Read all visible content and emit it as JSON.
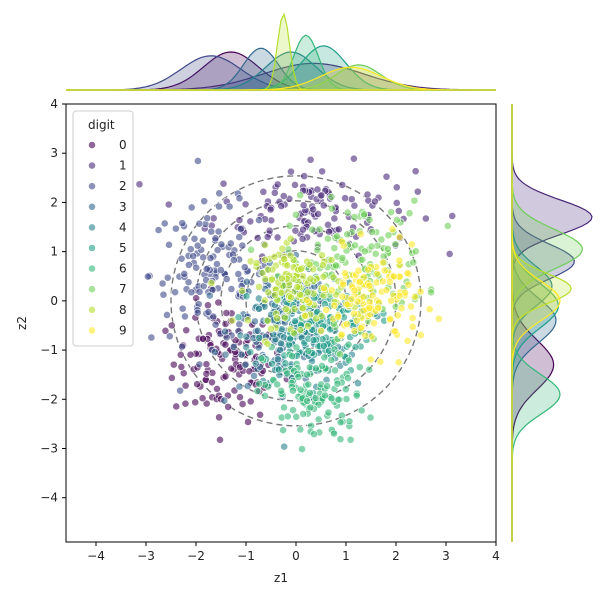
{
  "chart_data": {
    "type": "scatter",
    "title": "",
    "xlabel": "z1",
    "ylabel": "z2",
    "xlim": [
      -4.6,
      4.0
    ],
    "ylim": [
      -4.9,
      4.0
    ],
    "xticks": [
      -4,
      -3,
      -2,
      -1,
      0,
      1,
      2,
      3,
      4
    ],
    "yticks": [
      -4,
      -3,
      -2,
      -1,
      0,
      1,
      2,
      3,
      4
    ],
    "grid": false,
    "legend": {
      "title": "digit",
      "placement": "top-left",
      "entries": [
        "0",
        "1",
        "2",
        "3",
        "4",
        "5",
        "6",
        "7",
        "8",
        "9"
      ]
    },
    "marginals": {
      "top": "kde",
      "right": "kde"
    },
    "overlay": "dashed concentric circles around origin",
    "series": [
      {
        "name": "0",
        "color": "#440154",
        "center": [
          -1.35,
          -1.25
        ],
        "std": [
          0.55,
          0.6
        ]
      },
      {
        "name": "1",
        "color": "#482878",
        "center": [
          0.35,
          1.85
        ],
        "std": [
          1.0,
          0.45
        ]
      },
      {
        "name": "2",
        "color": "#3e4989",
        "center": [
          -1.7,
          0.55
        ],
        "std": [
          0.6,
          0.7
        ]
      },
      {
        "name": "3",
        "color": "#31688e",
        "center": [
          -0.3,
          -0.5
        ],
        "std": [
          0.5,
          0.6
        ]
      },
      {
        "name": "4",
        "color": "#26828e",
        "center": [
          0.05,
          -0.75
        ],
        "std": [
          0.5,
          0.55
        ]
      },
      {
        "name": "5",
        "color": "#1f9e89",
        "center": [
          0.45,
          -0.45
        ],
        "std": [
          0.55,
          0.5
        ]
      },
      {
        "name": "6",
        "color": "#35b779",
        "center": [
          0.35,
          -1.9
        ],
        "std": [
          0.5,
          0.5
        ]
      },
      {
        "name": "7",
        "color": "#6ece58",
        "center": [
          1.2,
          0.8
        ],
        "std": [
          0.7,
          0.6
        ]
      },
      {
        "name": "8",
        "color": "#b5de2b",
        "center": [
          0.0,
          0.3
        ],
        "std": [
          0.45,
          0.4
        ]
      },
      {
        "name": "9",
        "color": "#fde725",
        "center": [
          1.5,
          0.0
        ],
        "std": [
          0.5,
          0.5
        ]
      }
    ],
    "marginal_x_peaks": [
      {
        "name": "0",
        "center": -1.3,
        "std": 0.55,
        "height": 0.5
      },
      {
        "name": "1",
        "center": 0.35,
        "std": 1.0,
        "height": 0.35
      },
      {
        "name": "2",
        "center": -1.7,
        "std": 0.6,
        "height": 0.45
      },
      {
        "name": "3",
        "center": -0.7,
        "std": 0.35,
        "height": 0.55
      },
      {
        "name": "4",
        "center": -0.1,
        "std": 0.5,
        "height": 0.5
      },
      {
        "name": "5",
        "center": 0.55,
        "std": 0.45,
        "height": 0.58
      },
      {
        "name": "6",
        "center": 0.2,
        "std": 0.25,
        "height": 0.72
      },
      {
        "name": "7",
        "center": 1.25,
        "std": 0.45,
        "height": 0.33
      },
      {
        "name": "8",
        "center": -0.25,
        "std": 0.12,
        "height": 1.0
      },
      {
        "name": "9",
        "center": 1.1,
        "std": 0.6,
        "height": 0.3
      }
    ],
    "marginal_y_peaks": [
      {
        "name": "0",
        "center": -1.3,
        "std": 0.5,
        "height": 0.52
      },
      {
        "name": "1",
        "center": 1.7,
        "std": 0.35,
        "height": 1.0
      },
      {
        "name": "2",
        "center": 0.8,
        "std": 0.35,
        "height": 0.78
      },
      {
        "name": "3",
        "center": -0.4,
        "std": 0.45,
        "height": 0.55
      },
      {
        "name": "4",
        "center": 0.3,
        "std": 0.4,
        "height": 0.5
      },
      {
        "name": "5",
        "center": -0.1,
        "std": 0.45,
        "height": 0.58
      },
      {
        "name": "6",
        "center": -1.9,
        "std": 0.4,
        "height": 0.6
      },
      {
        "name": "7",
        "center": 1.05,
        "std": 0.4,
        "height": 0.88
      },
      {
        "name": "8",
        "center": 0.25,
        "std": 0.3,
        "height": 0.74
      },
      {
        "name": "9",
        "center": 0.0,
        "std": 0.4,
        "height": 0.6
      }
    ]
  }
}
